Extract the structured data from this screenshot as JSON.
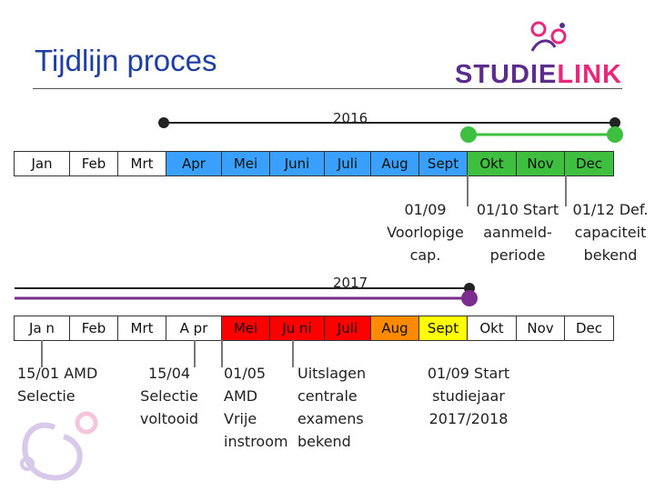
{
  "slide": {
    "title": "Tijdlijn proces",
    "logo": "STUDIELINK",
    "logo_parts": [
      "STUDIE",
      "LINK"
    ]
  },
  "timeline_2016": {
    "year": "2016",
    "months": [
      "Jan",
      "Feb",
      "Mrt",
      "Apr",
      "Mei",
      "Juni",
      "Juli",
      "Aug",
      "Sept",
      "Okt",
      "Nov",
      "Dec"
    ],
    "colors": [
      "#ffffff",
      "#ffffff",
      "#ffffff",
      "#3aa0ff",
      "#3aa0ff",
      "#3aa0ff",
      "#3aa0ff",
      "#3aa0ff",
      "#3aa0ff",
      "#3fbf3f",
      "#3fbf3f",
      "#3fbf3f"
    ],
    "notes": [
      {
        "lines": [
          "01/09",
          "Voorlopige",
          "cap."
        ]
      },
      {
        "lines": [
          "01/10 Start",
          "aanmeld-",
          "periode"
        ]
      },
      {
        "lines": [
          "01/12 Def.",
          "capaciteit",
          "bekend"
        ]
      }
    ]
  },
  "timeline_2017": {
    "year": "2017",
    "months": [
      "Ja n",
      "Feb",
      "Mrt",
      "A pr",
      "Mei",
      "Ju ni",
      "Juli",
      "Aug",
      "Sept",
      "Okt",
      "Nov",
      "Dec"
    ],
    "colors": [
      "#ffffff",
      "#ffffff",
      "#ffffff",
      "#ffffff",
      "#ff0000",
      "#ff0000",
      "#ff0000",
      "#ff8a00",
      "#ffff00",
      "#ffffff",
      "#ffffff",
      "#ffffff"
    ],
    "notes": [
      {
        "lines": [
          "15/01 AMD",
          "Selectie"
        ]
      },
      {
        "lines": [
          "15/04",
          "Selectie",
          "voltooid"
        ]
      },
      {
        "lines": [
          "01/05",
          "AMD",
          "Vrije",
          "instroom"
        ]
      },
      {
        "lines": [
          "Uitslagen",
          "centrale",
          "examens",
          "bekend"
        ]
      },
      {
        "lines": [
          "01/09 Start",
          "studiejaar",
          "2017/2018"
        ]
      }
    ]
  },
  "colors": {
    "title": "#1f3fa3",
    "logo_purple": "#5c2d8c",
    "logo_pink": "#e8287a",
    "arrow_2016": "#222222",
    "arrow_green": "#3fbf3f",
    "arrow_purple": "#7b2d8e"
  }
}
